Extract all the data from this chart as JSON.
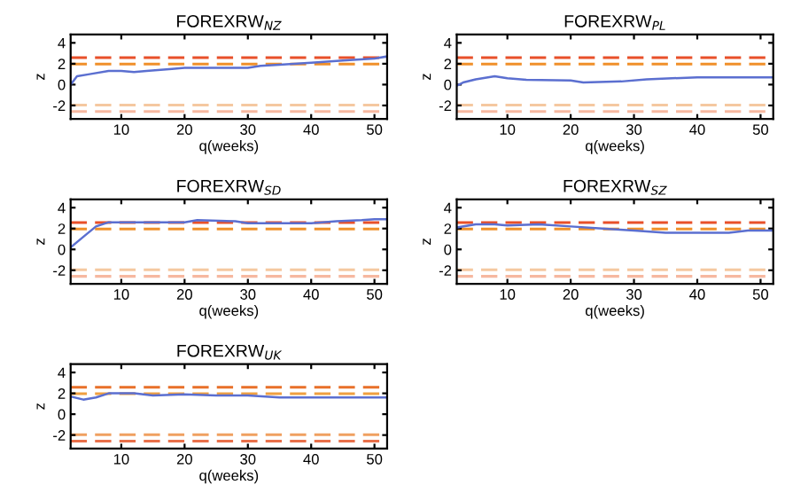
{
  "chart_data": [
    {
      "type": "line",
      "title": "FOREXRW$_{NZ}$",
      "xlabel": "q(weeks)",
      "ylabel": "z",
      "xlim": [
        2,
        52
      ],
      "ylim": [
        -3.3,
        4.8
      ],
      "xticks": [
        10,
        20,
        30,
        40,
        50
      ],
      "yticks": [
        -2,
        0,
        2,
        4
      ],
      "grid": false,
      "line_style": "solid",
      "series": [
        {
          "color": "#5b6fd0",
          "x": [
            2,
            3,
            5,
            8,
            10,
            12,
            14,
            18,
            20,
            25,
            30,
            32,
            35,
            40,
            45,
            50,
            52
          ],
          "values": [
            0,
            0.8,
            1.0,
            1.3,
            1.3,
            1.2,
            1.3,
            1.5,
            1.6,
            1.6,
            1.6,
            1.8,
            1.9,
            2.1,
            2.3,
            2.5,
            2.7
          ]
        }
      ],
      "ref_lines": [
        {
          "axis": "y",
          "value": 2.58,
          "color": "#e8502a",
          "line_style": "dashed"
        },
        {
          "axis": "y",
          "value": 1.96,
          "color": "#f0902a",
          "line_style": "dashed"
        },
        {
          "axis": "y",
          "value": -1.96,
          "color": "#f5c8a0",
          "line_style": "dashed"
        },
        {
          "axis": "y",
          "value": -2.58,
          "color": "#f6b8a0",
          "line_style": "dashed"
        }
      ]
    },
    {
      "type": "line",
      "title": "FOREXRW$_{PL}$",
      "xlabel": "q(weeks)",
      "ylabel": "z",
      "xlim": [
        2,
        52
      ],
      "ylim": [
        -3.3,
        4.8
      ],
      "xticks": [
        10,
        20,
        30,
        40,
        50
      ],
      "yticks": [
        -2,
        0,
        2,
        4
      ],
      "grid": false,
      "line_style": "solid",
      "series": [
        {
          "color": "#5b6fd0",
          "x": [
            2,
            3,
            5,
            8,
            10,
            13,
            20,
            22,
            28,
            32,
            36,
            40,
            52
          ],
          "values": [
            -0.1,
            0.2,
            0.5,
            0.8,
            0.6,
            0.45,
            0.4,
            0.2,
            0.3,
            0.5,
            0.6,
            0.7,
            0.7
          ]
        }
      ],
      "ref_lines": [
        {
          "axis": "y",
          "value": 2.58,
          "color": "#e8502a",
          "line_style": "dashed"
        },
        {
          "axis": "y",
          "value": 1.96,
          "color": "#f0902a",
          "line_style": "dashed"
        },
        {
          "axis": "y",
          "value": -1.96,
          "color": "#f5c8a0",
          "line_style": "dashed"
        },
        {
          "axis": "y",
          "value": -2.58,
          "color": "#f6b8a0",
          "line_style": "dashed"
        }
      ]
    },
    {
      "type": "line",
      "title": "FOREXRW$_{SD}$",
      "xlabel": "q(weeks)",
      "ylabel": "z",
      "xlim": [
        2,
        52
      ],
      "ylim": [
        -3.3,
        4.8
      ],
      "xticks": [
        10,
        20,
        30,
        40,
        50
      ],
      "yticks": [
        -2,
        0,
        2,
        4
      ],
      "grid": false,
      "line_style": "solid",
      "series": [
        {
          "color": "#5b6fd0",
          "x": [
            2,
            4,
            6,
            8,
            10,
            20,
            22,
            28,
            30,
            40,
            44,
            48,
            50,
            52
          ],
          "values": [
            0.2,
            1.2,
            2.2,
            2.6,
            2.6,
            2.6,
            2.8,
            2.7,
            2.5,
            2.5,
            2.7,
            2.8,
            2.9,
            2.9
          ]
        }
      ],
      "ref_lines": [
        {
          "axis": "y",
          "value": 2.58,
          "color": "#e8502a",
          "line_style": "dashed"
        },
        {
          "axis": "y",
          "value": 1.96,
          "color": "#f0902a",
          "line_style": "dashed"
        },
        {
          "axis": "y",
          "value": -1.96,
          "color": "#f5c8a0",
          "line_style": "dashed"
        },
        {
          "axis": "y",
          "value": -2.58,
          "color": "#f6b8a0",
          "line_style": "dashed"
        }
      ]
    },
    {
      "type": "line",
      "title": "FOREXRW$_{SZ}$",
      "xlabel": "q(weeks)",
      "ylabel": "z",
      "xlim": [
        2,
        52
      ],
      "ylim": [
        -3.3,
        4.8
      ],
      "xticks": [
        10,
        20,
        30,
        40,
        50
      ],
      "yticks": [
        -2,
        0,
        2,
        4
      ],
      "grid": false,
      "line_style": "solid",
      "series": [
        {
          "color": "#5b6fd0",
          "x": [
            2,
            5,
            8,
            10,
            15,
            20,
            25,
            30,
            35,
            40,
            45,
            48,
            52
          ],
          "values": [
            2.1,
            2.4,
            2.4,
            2.3,
            2.4,
            2.2,
            2.0,
            1.8,
            1.6,
            1.6,
            1.6,
            1.8,
            1.8
          ]
        }
      ],
      "ref_lines": [
        {
          "axis": "y",
          "value": 2.58,
          "color": "#e8502a",
          "line_style": "dashed"
        },
        {
          "axis": "y",
          "value": 1.96,
          "color": "#f0902a",
          "line_style": "dashed"
        },
        {
          "axis": "y",
          "value": -1.96,
          "color": "#f5c8a0",
          "line_style": "dashed"
        },
        {
          "axis": "y",
          "value": -2.58,
          "color": "#f6b8a0",
          "line_style": "dashed"
        }
      ]
    },
    {
      "type": "line",
      "title": "FOREXRW$_{UK}$",
      "xlabel": "q(weeks)",
      "ylabel": "z",
      "xlim": [
        2,
        52
      ],
      "ylim": [
        -3.3,
        4.8
      ],
      "xticks": [
        10,
        20,
        30,
        40,
        50
      ],
      "yticks": [
        -2,
        0,
        2,
        4
      ],
      "grid": false,
      "line_style": "solid",
      "series": [
        {
          "color": "#5b6fd0",
          "x": [
            2,
            4,
            6,
            8,
            12,
            15,
            20,
            25,
            30,
            35,
            40,
            52
          ],
          "values": [
            1.7,
            1.4,
            1.6,
            2.0,
            2.0,
            1.8,
            1.9,
            1.8,
            1.8,
            1.6,
            1.6,
            1.6
          ]
        }
      ],
      "ref_lines": [
        {
          "axis": "y",
          "value": 2.58,
          "color": "#e8702a",
          "line_style": "dashed"
        },
        {
          "axis": "y",
          "value": 1.96,
          "color": "#f0a040",
          "line_style": "dashed"
        },
        {
          "axis": "y",
          "value": -1.96,
          "color": "#f0a060",
          "line_style": "dashed"
        },
        {
          "axis": "y",
          "value": -2.58,
          "color": "#e8704a",
          "line_style": "dashed"
        }
      ]
    }
  ]
}
